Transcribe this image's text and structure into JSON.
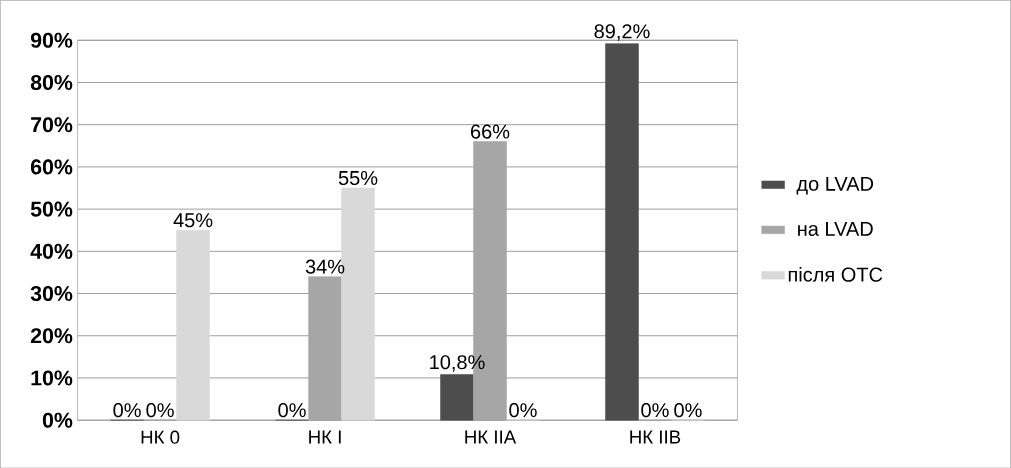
{
  "chart_data": {
    "type": "bar",
    "categories": [
      "НК 0",
      "НК I",
      "НК IIA",
      "НК IIB"
    ],
    "series": [
      {
        "name": "до LVAD",
        "color": "#4d4d4d",
        "values": [
          0,
          0,
          10.8,
          89.2
        ],
        "value_labels": [
          "0%",
          "0%",
          "10,8%",
          "89,2%"
        ]
      },
      {
        "name": "на LVAD",
        "color": "#a6a6a6",
        "values": [
          0,
          34,
          66,
          0
        ],
        "value_labels": [
          "0%",
          "34%",
          "66%",
          "0%"
        ]
      },
      {
        "name": "після ОТС",
        "color": "#d9d9d9",
        "values": [
          45,
          55,
          0,
          0
        ],
        "value_labels": [
          "45%",
          "55%",
          "0%",
          "0%"
        ]
      }
    ],
    "ylim": [
      0,
      90
    ],
    "yticks": [
      {
        "value": 0,
        "label": "0%"
      },
      {
        "value": 10,
        "label": "10%"
      },
      {
        "value": 20,
        "label": "20%"
      },
      {
        "value": 30,
        "label": "30%"
      },
      {
        "value": 40,
        "label": "40%"
      },
      {
        "value": 50,
        "label": "50%"
      },
      {
        "value": 60,
        "label": "60%"
      },
      {
        "value": 70,
        "label": "70%"
      },
      {
        "value": 80,
        "label": "80%"
      },
      {
        "value": 90,
        "label": "90%"
      }
    ],
    "grid": "y",
    "legend": "right"
  }
}
